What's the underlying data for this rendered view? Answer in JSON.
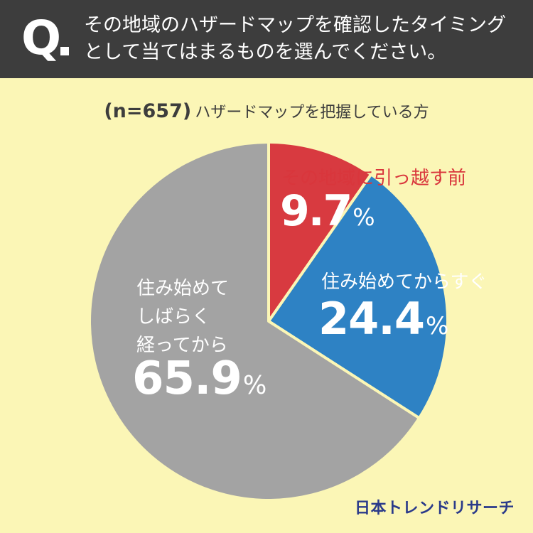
{
  "header": {
    "q_letter": "Q",
    "question_line1": "その地域のハザードマップを確認したタイミング",
    "question_line2": "として当てはまるものを選んでください。"
  },
  "subtitle": {
    "n_label": "(n=657)",
    "population": "ハザードマップを把握している方"
  },
  "chart_data": {
    "type": "pie",
    "slices": [
      {
        "label": "その地域に引っ越す前",
        "label_lines": [
          "その地域に引っ越す前"
        ],
        "value": 9.7,
        "display": "9.7",
        "color": "#d83a40"
      },
      {
        "label": "住み始めてからすぐ",
        "label_lines": [
          "住み始めてからすぐ"
        ],
        "value": 24.4,
        "display": "24.4",
        "color": "#2e82c4"
      },
      {
        "label": "住み始めてしばらく経ってから",
        "label_lines": [
          "住み始めて",
          "しばらく",
          "経ってから"
        ],
        "value": 65.9,
        "display": "65.9",
        "color": "#a3a3a3"
      }
    ],
    "unit": "%",
    "start": "12 o'clock",
    "direction": "clockwise",
    "separator_color": "#fbf6b6"
  },
  "brand": {
    "logo_text": "日本トレンドリサーチ",
    "color": "#2a3a8a"
  }
}
